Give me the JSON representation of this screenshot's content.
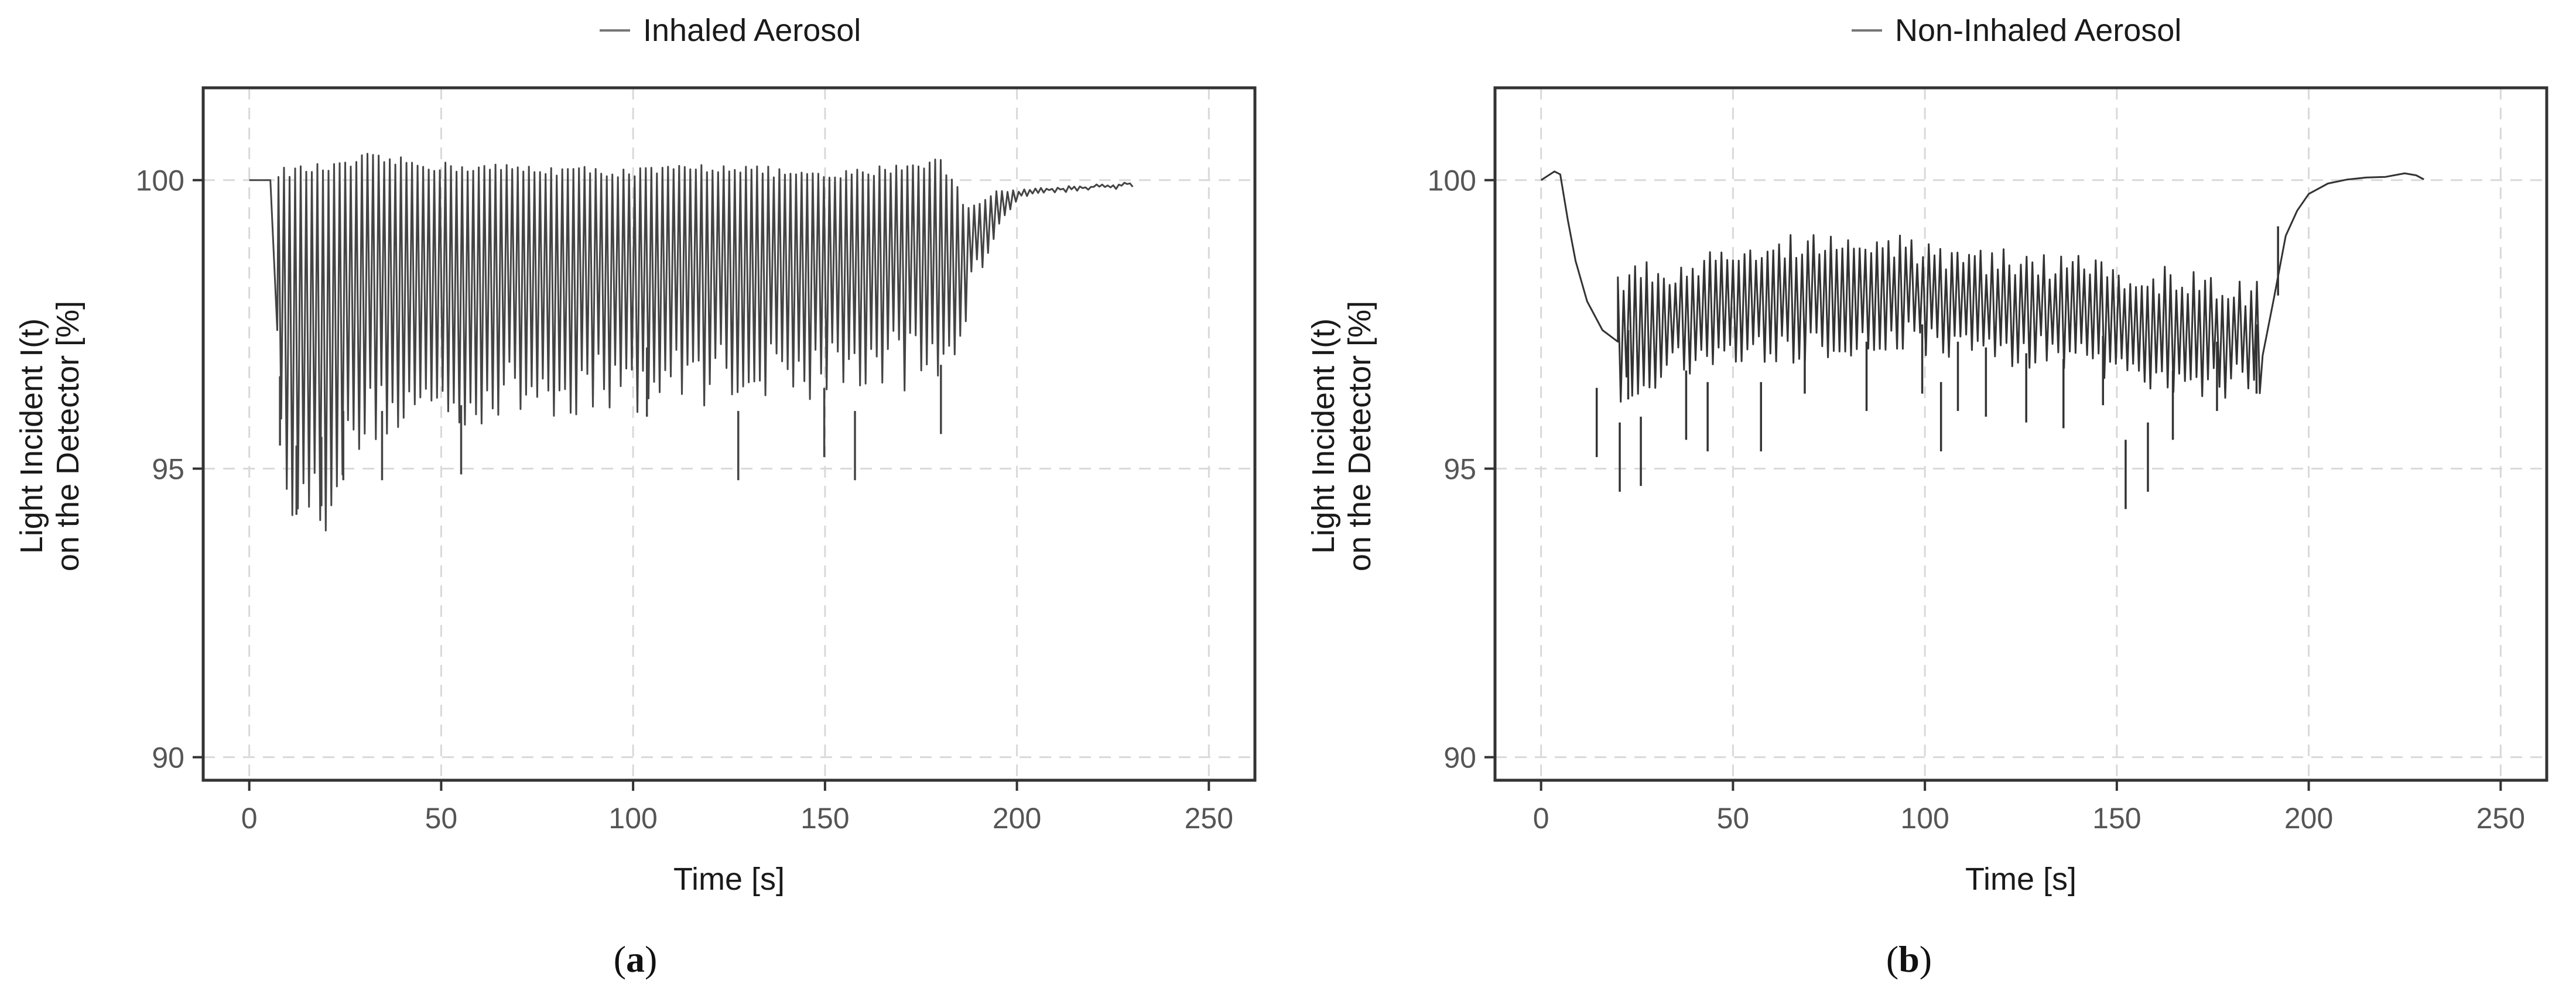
{
  "chart_data": [
    {
      "type": "line",
      "panel_label": "a",
      "legend": "Inhaled Aerosol",
      "xlabel": "Time [s]",
      "ylabel_lines": [
        "Light Incident I(t)",
        "on the Detector [%]"
      ],
      "xlim": [
        -12,
        262
      ],
      "ylim": [
        89.6,
        101.6
      ],
      "xticks": [
        0,
        50,
        100,
        150,
        200,
        250
      ],
      "yticks": [
        90,
        95,
        100
      ],
      "grid": true,
      "series": [
        {
          "name": "Inhaled Aerosol",
          "color": "#444444",
          "baseline_start": [
            [
              0,
              100.0
            ],
            [
              5.5,
              100.0
            ]
          ],
          "drop_end": [
            [
              5.5,
              100.0
            ],
            [
              7.3,
              97.4
            ]
          ],
          "oscillation_period_s": 1.45,
          "peaks": [
            [
              8,
              100.1
            ],
            [
              15,
              100.15
            ],
            [
              25,
              100.2
            ],
            [
              30,
              100.35
            ],
            [
              50,
              100.2
            ],
            [
              100,
              100.1
            ],
            [
              125,
              100.2
            ],
            [
              150,
              100.0
            ],
            [
              180,
              100.3
            ],
            [
              187,
              99.5
            ],
            [
              190,
              99.6
            ],
            [
              195,
              99.8
            ],
            [
              230,
              99.95
            ]
          ],
          "troughs": [
            [
              8,
              95.5
            ],
            [
              12,
              94.2
            ],
            [
              15,
              94.7
            ],
            [
              19,
              94.4
            ],
            [
              22,
              95.0
            ],
            [
              27,
              95.6
            ],
            [
              32,
              96.0
            ],
            [
              40,
              96.1
            ],
            [
              55,
              96.2
            ],
            [
              75,
              96.4
            ],
            [
              100,
              96.5
            ],
            [
              125,
              96.7
            ],
            [
              140,
              96.7
            ],
            [
              160,
              96.8
            ],
            [
              180,
              97.0
            ],
            [
              190,
              98.4
            ],
            [
              195,
              99.3
            ],
            [
              200,
              99.75
            ],
            [
              215,
              99.85
            ],
            [
              230,
              99.9
            ]
          ],
          "deep_spikes": [
            [
              12.3,
              94.2
            ],
            [
              18.8,
              94.35
            ],
            [
              24.5,
              94.8
            ],
            [
              34.6,
              94.8
            ],
            [
              55.2,
              94.9
            ],
            [
              127.4,
              94.8
            ],
            [
              157.8,
              94.8
            ],
            [
              180.2,
              95.6
            ],
            [
              8.0,
              95.4
            ],
            [
              103.6,
              95.9
            ],
            [
              149.8,
              95.2
            ]
          ],
          "end_x": 230
        }
      ]
    },
    {
      "type": "line",
      "panel_label": "b",
      "legend": "Non-Inhaled Aerosol",
      "xlabel": "Time [s]",
      "ylabel_lines": [
        "Light Incident I(t)",
        "on the Detector [%]"
      ],
      "xlim": [
        -12,
        262
      ],
      "ylim": [
        89.6,
        101.6
      ],
      "xticks": [
        0,
        50,
        100,
        150,
        200,
        250
      ],
      "yticks": [
        90,
        95,
        100
      ],
      "grid": true,
      "series": [
        {
          "name": "Non-Inhaled Aerosol",
          "color": "#333333",
          "start": [
            [
              0,
              100.0
            ],
            [
              3.5,
              100.15
            ],
            [
              5,
              100.1
            ],
            [
              7,
              99.3
            ],
            [
              9,
              98.6
            ],
            [
              12,
              97.9
            ],
            [
              16,
              97.4
            ],
            [
              20,
              97.2
            ]
          ],
          "upper_envelope": [
            [
              8,
              99.6
            ],
            [
              14,
              98.7
            ],
            [
              20,
              98.3
            ],
            [
              35,
              98.4
            ],
            [
              55,
              98.7
            ],
            [
              75,
              99.0
            ],
            [
              95,
              98.8
            ],
            [
              115,
              98.6
            ],
            [
              135,
              98.5
            ],
            [
              155,
              98.3
            ],
            [
              170,
              98.2
            ],
            [
              185,
              98.0
            ]
          ],
          "lower_envelope": [
            [
              8,
              97.7
            ],
            [
              14,
              96.8
            ],
            [
              20,
              96.4
            ],
            [
              35,
              96.8
            ],
            [
              55,
              97.0
            ],
            [
              75,
              97.2
            ],
            [
              95,
              97.3
            ],
            [
              115,
              97.1
            ],
            [
              135,
              97.0
            ],
            [
              155,
              96.6
            ],
            [
              170,
              96.4
            ],
            [
              185,
              96.6
            ]
          ],
          "oscillation_period_s": 1.5,
          "deep_spikes": [
            [
              14.5,
              95.2
            ],
            [
              20.5,
              94.6
            ],
            [
              26,
              94.7
            ],
            [
              37.8,
              95.5
            ],
            [
              43.4,
              95.3
            ],
            [
              57.3,
              95.3
            ],
            [
              68.7,
              96.3
            ],
            [
              84.8,
              96.0
            ],
            [
              104.2,
              95.3
            ],
            [
              115.9,
              95.9
            ],
            [
              126.4,
              95.8
            ],
            [
              136.1,
              95.7
            ],
            [
              146.4,
              96.1
            ],
            [
              152.3,
              94.3
            ],
            [
              158.1,
              94.6
            ],
            [
              164.6,
              95.5
            ],
            [
              176.1,
              96.0
            ],
            [
              186.4,
              96.3
            ],
            [
              192.0,
              98.0
            ],
            [
              108.6,
              96.0
            ],
            [
              99.3,
              96.3
            ],
            [
              22.7,
              96.2
            ]
          ],
          "recovery": [
            [
              188,
              97.0
            ],
            [
              191,
              98.0
            ],
            [
              194,
              99.0
            ],
            [
              197,
              99.5
            ],
            [
              200,
              99.75
            ],
            [
              205,
              99.95
            ],
            [
              210,
              100.0
            ],
            [
              215,
              100.05
            ],
            [
              220,
              100.05
            ],
            [
              225,
              100.1
            ],
            [
              228,
              100.1
            ],
            [
              230,
              100.0
            ]
          ],
          "end_x": 230
        }
      ]
    }
  ]
}
